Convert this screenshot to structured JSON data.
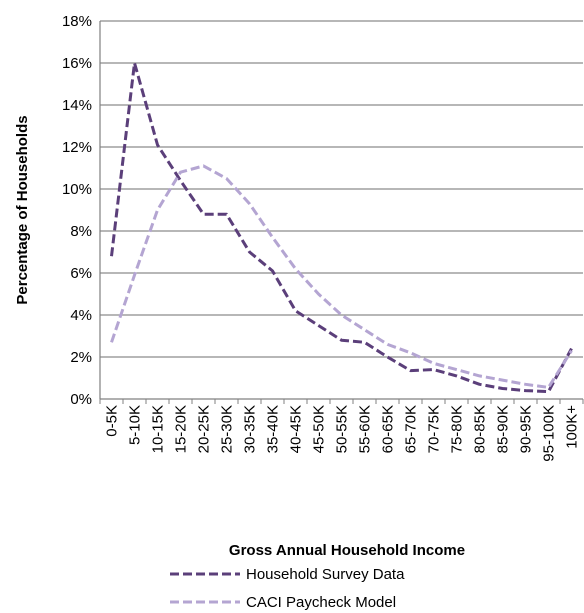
{
  "chart_data": {
    "type": "line",
    "title": "",
    "xlabel": "Gross Annual Household Income",
    "ylabel": "Percentage of Households",
    "categories": [
      "0-5K",
      "5-10K",
      "10-15K",
      "15-20K",
      "20-25K",
      "25-30K",
      "30-35K",
      "35-40K",
      "40-45K",
      "45-50K",
      "50-55K",
      "55-60K",
      "60-65K",
      "65-70K",
      "70-75K",
      "75-80K",
      "80-85K",
      "85-90K",
      "90-95K",
      "95-100K",
      "100K+"
    ],
    "y_ticks": [
      "0%",
      "2%",
      "4%",
      "6%",
      "8%",
      "10%",
      "12%",
      "14%",
      "16%",
      "18%"
    ],
    "ylim": [
      0,
      18
    ],
    "grid": true,
    "legend_position": "bottom",
    "series": [
      {
        "name": "Household Survey Data",
        "color": "#5b3f7a",
        "values": [
          6.8,
          16.0,
          12.1,
          10.4,
          8.8,
          8.8,
          7.0,
          6.1,
          4.2,
          3.5,
          2.8,
          2.7,
          2.0,
          1.35,
          1.4,
          1.1,
          0.7,
          0.5,
          0.4,
          0.35,
          2.4
        ]
      },
      {
        "name": "CACI Paycheck Model",
        "color": "#b4a5d2",
        "values": [
          2.7,
          5.9,
          9.0,
          10.8,
          11.1,
          10.5,
          9.3,
          7.7,
          6.2,
          5.0,
          4.0,
          3.3,
          2.6,
          2.2,
          1.7,
          1.4,
          1.1,
          0.9,
          0.7,
          0.55,
          2.3
        ]
      }
    ]
  }
}
